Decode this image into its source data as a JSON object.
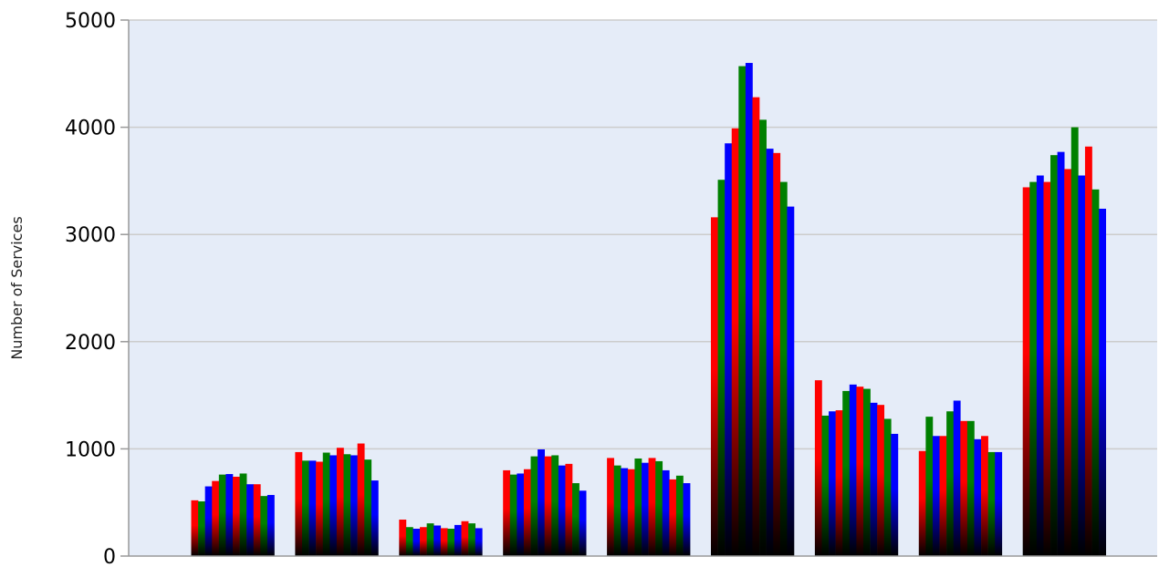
{
  "chart_data": {
    "type": "bar",
    "title": "",
    "xlabel": "",
    "ylabel": "Number of Services",
    "ylim": [
      0,
      5000
    ],
    "yticks": [
      0,
      1000,
      2000,
      3000,
      4000,
      5000
    ],
    "grid": true,
    "legend": "none",
    "colors": {
      "plot_background": "#e5ecf8",
      "grid": "#cccccc",
      "axis": "#999999",
      "bar_cycle": [
        "#ff0000",
        "#008000",
        "#0000ff"
      ],
      "bar_base": "#000000"
    },
    "groups": [
      {
        "values": [
          520,
          510,
          650,
          700,
          760,
          765,
          740,
          770,
          670,
          670,
          560,
          570
        ]
      },
      {
        "values": [
          970,
          890,
          890,
          880,
          965,
          940,
          1010,
          950,
          940,
          1050,
          900,
          705
        ]
      },
      {
        "values": [
          340,
          270,
          255,
          270,
          305,
          285,
          260,
          255,
          290,
          325,
          305,
          260
        ]
      },
      {
        "values": [
          800,
          760,
          770,
          810,
          930,
          995,
          930,
          940,
          845,
          860,
          680,
          610
        ]
      },
      {
        "values": [
          915,
          845,
          820,
          810,
          910,
          870,
          915,
          885,
          800,
          715,
          750,
          680
        ]
      },
      {
        "values": [
          3160,
          3510,
          3850,
          3990,
          4570,
          4600,
          4280,
          4070,
          3800,
          3760,
          3490,
          3260
        ]
      },
      {
        "values": [
          1640,
          1310,
          1350,
          1360,
          1540,
          1600,
          1580,
          1560,
          1430,
          1410,
          1280,
          1140
        ]
      },
      {
        "values": [
          980,
          1300,
          1120,
          1120,
          1350,
          1450,
          1260,
          1260,
          1090,
          1120,
          970,
          970
        ]
      },
      {
        "values": [
          3440,
          3490,
          3550,
          3490,
          3740,
          3770,
          3610,
          4000,
          3550,
          3820,
          3420,
          3240
        ]
      }
    ]
  }
}
